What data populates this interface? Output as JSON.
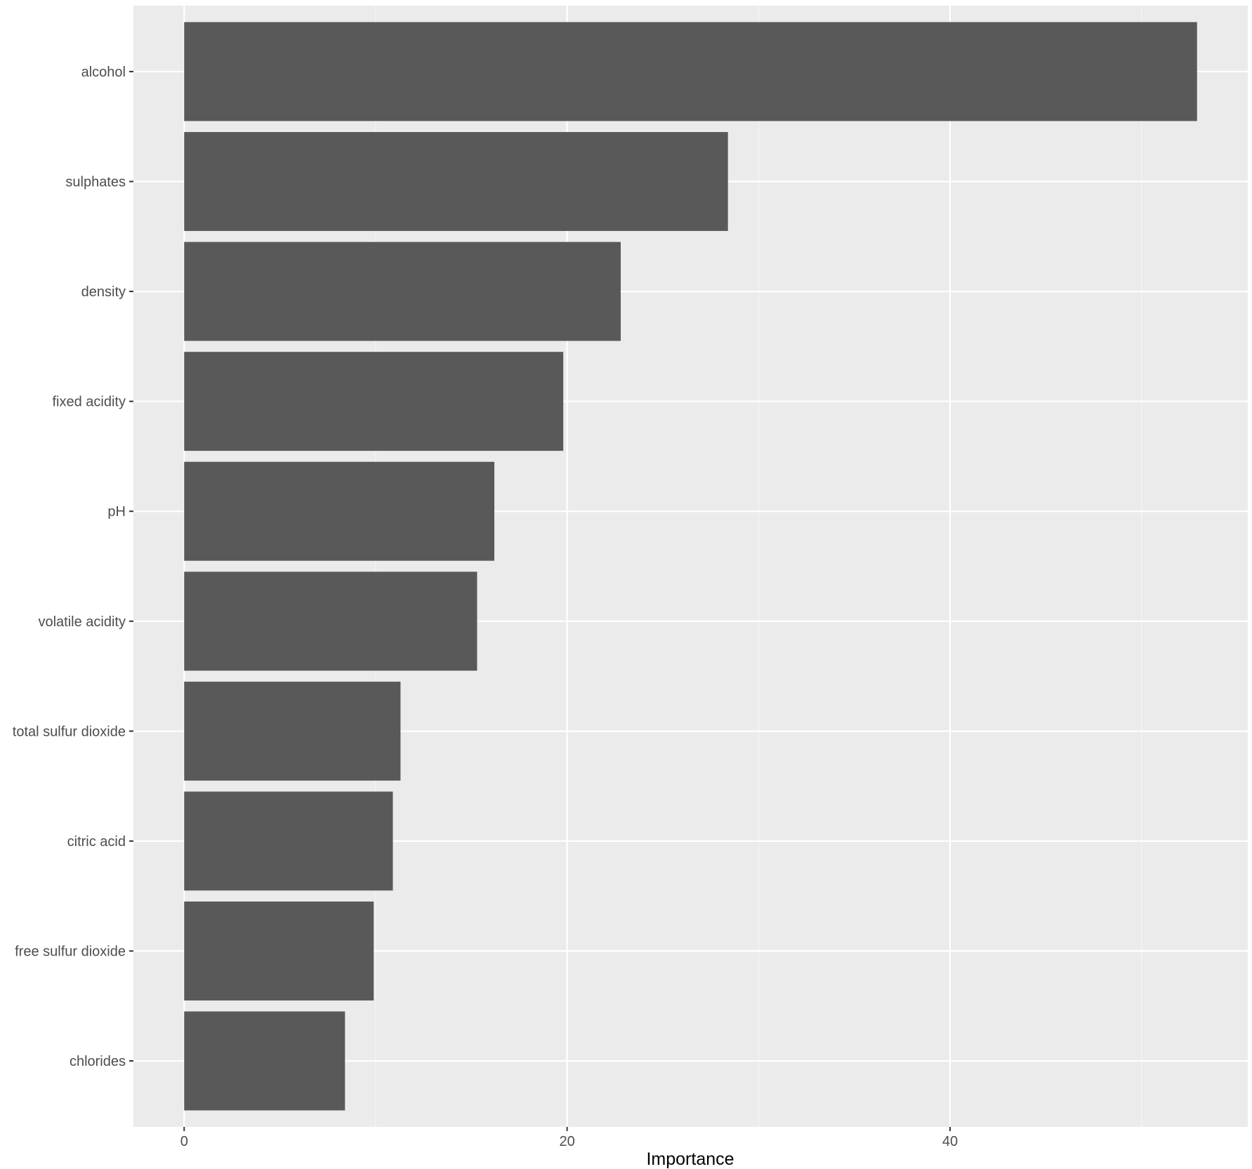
{
  "chart_data": {
    "type": "bar",
    "orientation": "horizontal",
    "categories": [
      "alcohol",
      "sulphates",
      "density",
      "fixed acidity",
      "pH",
      "volatile acidity",
      "total sulfur dioxide",
      "citric acid",
      "free sulfur dioxide",
      "chlorides"
    ],
    "values": [
      52.9,
      28.4,
      22.8,
      19.8,
      16.2,
      15.3,
      11.3,
      10.9,
      9.9,
      8.4
    ],
    "xlabel": "Importance",
    "ylabel": "",
    "xticks": [
      "0",
      "20",
      "40"
    ],
    "xlim": [
      -2.65,
      55.55
    ],
    "grid": true,
    "colors": {
      "bar": "#595959",
      "panel": "#ebebeb",
      "grid_major": "#ffffff",
      "grid_minor": "#f5f5f5"
    }
  }
}
